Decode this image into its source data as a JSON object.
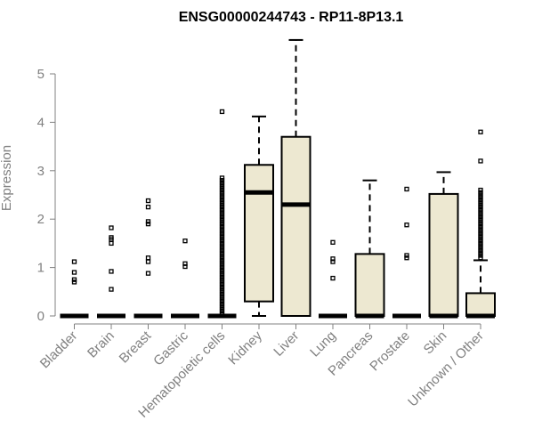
{
  "chart_data": {
    "type": "boxplot",
    "title": "ENSG00000244743 - RP11-8P13.1",
    "ylabel": "Expression",
    "xlabel": "",
    "ylim": [
      0,
      5.75
    ],
    "yticks": [
      0,
      1,
      2,
      3,
      4,
      5
    ],
    "grid": false,
    "legend": "none",
    "colors": {
      "box_fill": "#ede8d1",
      "stroke": "#000000",
      "axis_text": "#808080"
    },
    "categories": [
      "Bladder",
      "Brain",
      "Breast",
      "Gastric",
      "Hematopoietic cells",
      "Kidney",
      "Liver",
      "Lung",
      "Pancreas",
      "Prostate",
      "Skin",
      "Unknown / Other"
    ],
    "boxes": [
      {
        "name": "Bladder",
        "min": 0,
        "q1": 0,
        "median": 0,
        "q3": 0,
        "max": 0,
        "outliers": [
          0.7,
          0.75,
          0.9,
          1.12
        ]
      },
      {
        "name": "Brain",
        "min": 0,
        "q1": 0,
        "median": 0,
        "q3": 0,
        "max": 0,
        "outliers": [
          0.55,
          0.92,
          1.5,
          1.58,
          1.62,
          1.82
        ]
      },
      {
        "name": "Breast",
        "min": 0,
        "q1": 0,
        "median": 0,
        "q3": 0,
        "max": 0,
        "outliers": [
          0.88,
          1.12,
          1.2,
          1.9,
          1.95,
          2.25,
          2.38
        ]
      },
      {
        "name": "Gastric",
        "min": 0,
        "q1": 0,
        "median": 0,
        "q3": 0,
        "max": 0,
        "outliers": [
          1.02,
          1.08,
          1.55
        ]
      },
      {
        "name": "Hematopoietic cells",
        "min": 0,
        "q1": 0,
        "median": 0,
        "q3": 0,
        "max": 0,
        "outliers": [
          0.05,
          0.1,
          0.15,
          0.2,
          0.25,
          0.3,
          0.35,
          0.4,
          0.45,
          0.5,
          0.55,
          0.6,
          0.65,
          0.7,
          0.75,
          0.8,
          0.85,
          0.9,
          0.95,
          1.0,
          1.05,
          1.1,
          1.15,
          1.2,
          1.25,
          1.3,
          1.35,
          1.4,
          1.45,
          1.5,
          1.55,
          1.6,
          1.65,
          1.7,
          1.75,
          1.8,
          1.85,
          1.9,
          1.95,
          2.0,
          2.05,
          2.1,
          2.15,
          2.2,
          2.25,
          2.3,
          2.35,
          2.4,
          2.45,
          2.5,
          2.55,
          2.6,
          2.65,
          2.7,
          2.75,
          2.8,
          2.85,
          4.22
        ]
      },
      {
        "name": "Kidney",
        "min": 0,
        "q1": 0.3,
        "median": 2.55,
        "q3": 3.12,
        "max": 4.12,
        "outliers": []
      },
      {
        "name": "Liver",
        "min": 0,
        "q1": 0,
        "median": 2.3,
        "q3": 3.7,
        "max": 5.7,
        "outliers": []
      },
      {
        "name": "Lung",
        "min": 0,
        "q1": 0,
        "median": 0,
        "q3": 0,
        "max": 0,
        "outliers": [
          0.78,
          1.12,
          1.18,
          1.52
        ]
      },
      {
        "name": "Pancreas",
        "min": 0,
        "q1": 0,
        "median": 0,
        "q3": 1.28,
        "max": 2.8,
        "outliers": []
      },
      {
        "name": "Prostate",
        "min": 0,
        "q1": 0,
        "median": 0,
        "q3": 0,
        "max": 0,
        "outliers": [
          1.2,
          1.25,
          1.88,
          2.62
        ]
      },
      {
        "name": "Skin",
        "min": 0,
        "q1": 0,
        "median": 0,
        "q3": 2.52,
        "max": 2.97,
        "outliers": []
      },
      {
        "name": "Unknown / Other",
        "min": 0,
        "q1": 0,
        "median": 0,
        "q3": 0.47,
        "max": 1.15,
        "outliers": [
          1.2,
          1.25,
          1.3,
          1.35,
          1.4,
          1.45,
          1.5,
          1.55,
          1.6,
          1.65,
          1.7,
          1.75,
          1.8,
          1.85,
          1.9,
          1.95,
          2.0,
          2.05,
          2.1,
          2.15,
          2.2,
          2.25,
          2.3,
          2.35,
          2.4,
          2.45,
          2.5,
          2.55,
          2.6,
          3.2,
          3.8
        ]
      }
    ]
  }
}
